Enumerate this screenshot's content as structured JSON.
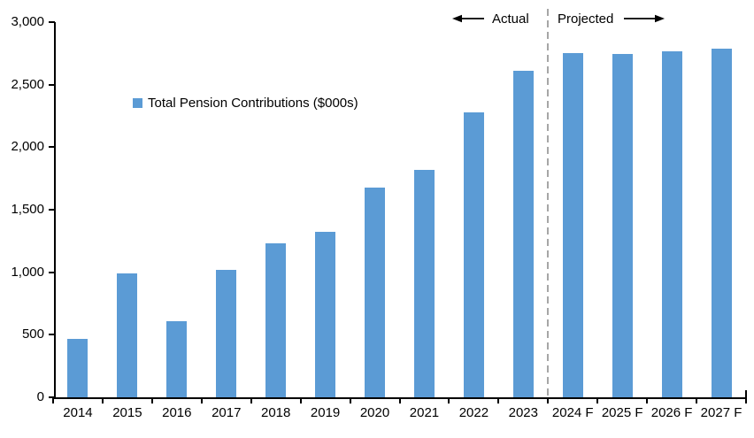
{
  "chart_data": {
    "type": "bar",
    "title": "",
    "series_name": "Total Pension Contributions ($000s)",
    "categories": [
      "2014",
      "2015",
      "2016",
      "2017",
      "2018",
      "2019",
      "2020",
      "2021",
      "2022",
      "2023",
      "2024 F",
      "2025 F",
      "2026 F",
      "2027 F"
    ],
    "values": [
      470,
      990,
      610,
      1020,
      1230,
      1320,
      1680,
      1815,
      2280,
      2610,
      2750,
      2745,
      2765,
      2790
    ],
    "xlabel": "",
    "ylabel": "",
    "ylim": [
      0,
      3000
    ],
    "ytick_step": 500,
    "ytick_labels": [
      "0",
      "500",
      "1,000",
      "1,500",
      "2,000",
      "2,500",
      "3,000"
    ],
    "grid": false,
    "legend_position": "inside-upper-left",
    "bar_color": "#5B9BD5",
    "axis_color": "#000000",
    "divider": {
      "after_category_index": 9,
      "style": "dashed",
      "color": "#A6A6A6"
    },
    "annotations": {
      "actual_label": "Actual",
      "projected_label": "Projected"
    }
  }
}
